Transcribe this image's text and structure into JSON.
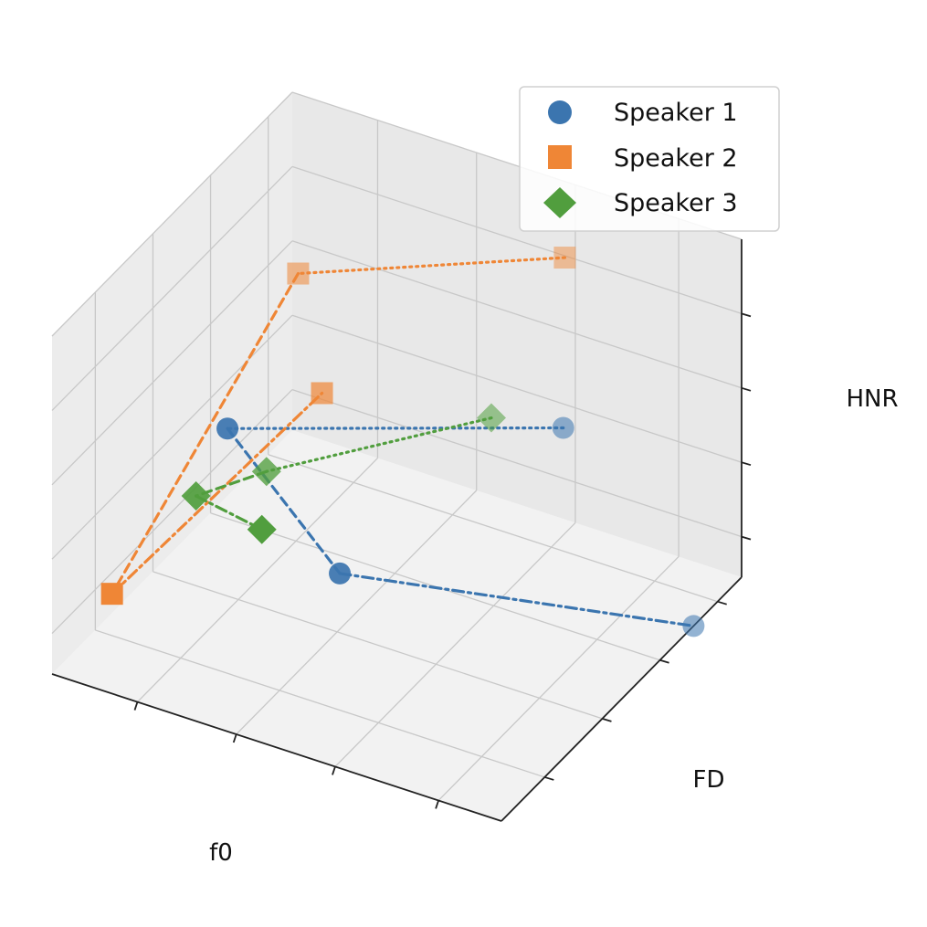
{
  "chart_data": {
    "type": "scatter",
    "subtype": "3d-scatter-with-lines",
    "xlabel": "f0",
    "ylabel": "FD",
    "zlabel": "HNR",
    "xlim": [
      0,
      1
    ],
    "ylim": [
      0,
      1
    ],
    "zlim": [
      0,
      1
    ],
    "tick_labels_shown": false,
    "grid": true,
    "legend_position": "top-right",
    "segment_linestyles": [
      "dotted",
      "dashed",
      "dashdot"
    ],
    "series": [
      {
        "name": "Speaker 1",
        "marker": "circle",
        "color": "#3b75af",
        "points": [
          {
            "f0": 0.71,
            "FD": 0.8,
            "HNR": 0.46
          },
          {
            "f0": 0.23,
            "FD": 0.3,
            "HNR": 0.61
          },
          {
            "f0": 0.48,
            "FD": 0.3,
            "HNR": 0.29
          },
          {
            "f0": 1.0,
            "FD": 0.8,
            "HNR": 0.0
          }
        ]
      },
      {
        "name": "Speaker 2",
        "marker": "square",
        "color": "#ef8636",
        "points": [
          {
            "f0": 0.66,
            "FD": 0.9,
            "HNR": 0.87
          },
          {
            "f0": 0.12,
            "FD": 0.8,
            "HNR": 0.66
          },
          {
            "f0": 0.08,
            "FD": 0.1,
            "HNR": 0.2
          },
          {
            "f0": 0.28,
            "FD": 0.6,
            "HNR": 0.52
          }
        ]
      },
      {
        "name": "Speaker 3",
        "marker": "diamond",
        "color": "#519e3e",
        "points": [
          {
            "f0": 0.55,
            "FD": 0.8,
            "HNR": 0.42
          },
          {
            "f0": 0.21,
            "FD": 0.5,
            "HNR": 0.33
          },
          {
            "f0": 0.16,
            "FD": 0.3,
            "HNR": 0.38
          },
          {
            "f0": 0.36,
            "FD": 0.2,
            "HNR": 0.44
          }
        ]
      }
    ]
  }
}
